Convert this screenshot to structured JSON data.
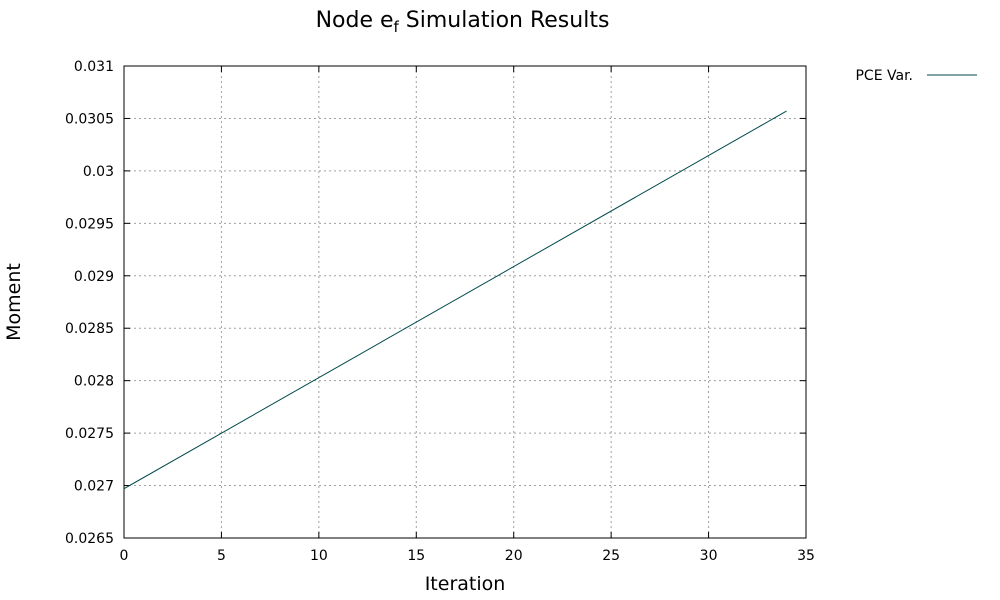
{
  "chart_data": {
    "type": "line",
    "title_main": "Node e",
    "title_sub": "f",
    "title_rest": " Simulation Results",
    "xlabel": "Iteration",
    "ylabel": "Moment",
    "xlim": [
      0,
      35
    ],
    "ylim": [
      0.0265,
      0.031
    ],
    "x_ticks": [
      "0",
      "5",
      "10",
      "15",
      "20",
      "25",
      "30",
      "35"
    ],
    "x_tick_values": [
      0,
      5,
      10,
      15,
      20,
      25,
      30,
      35
    ],
    "y_ticks": [
      "0.0265",
      "0.027",
      "0.0275",
      "0.028",
      "0.0285",
      "0.029",
      "0.0295",
      "0.03",
      "0.0305",
      "0.031"
    ],
    "y_tick_values": [
      0.0265,
      0.027,
      0.0275,
      0.028,
      0.0285,
      0.029,
      0.0295,
      0.03,
      0.0305,
      0.031
    ],
    "grid": true,
    "legend_position": "outside-top-right",
    "series": [
      {
        "name": "PCE Var.",
        "color": "#004a4a",
        "x": [
          0,
          34
        ],
        "y": [
          0.02697,
          0.03057
        ]
      }
    ]
  }
}
